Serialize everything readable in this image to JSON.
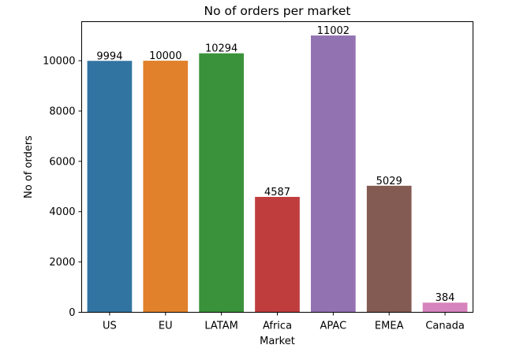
{
  "chart_data": {
    "type": "bar",
    "title": "No of orders per market",
    "xlabel": "Market",
    "ylabel": "No of orders",
    "categories": [
      "US",
      "EU",
      "LATAM",
      "Africa",
      "APAC",
      "EMEA",
      "Canada"
    ],
    "values": [
      9994,
      10000,
      10294,
      4587,
      11002,
      5029,
      384
    ],
    "data_labels": [
      "9994",
      "10000",
      "10294",
      "4587",
      "11002",
      "5029",
      "384"
    ],
    "colors": [
      "#3274a1",
      "#e1812c",
      "#3a923a",
      "#c03d3e",
      "#9372b2",
      "#845b53",
      "#d684bd"
    ],
    "yticks": [
      0,
      2000,
      4000,
      6000,
      8000,
      10000
    ],
    "ytick_labels": [
      "0",
      "2000",
      "4000",
      "6000",
      "8000",
      "10000"
    ],
    "ylim": [
      0,
      11552
    ],
    "grid": false,
    "legend": "none"
  }
}
